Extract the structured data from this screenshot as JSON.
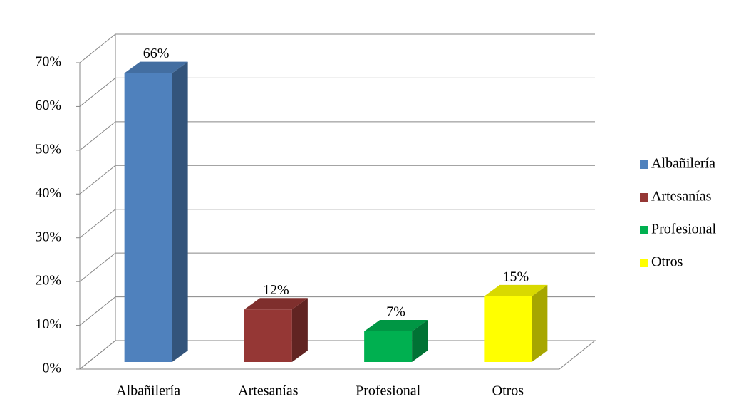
{
  "chart_data": {
    "type": "bar3d",
    "categories": [
      "Albañilería",
      "Artesanías",
      "Profesional",
      "Otros"
    ],
    "values": [
      66,
      12,
      7,
      15
    ],
    "value_labels": [
      "66%",
      "12%",
      "7%",
      "15%"
    ],
    "colors": [
      "#4f81bd",
      "#953735",
      "#00b050",
      "#ffff00"
    ],
    "ylim": [
      0,
      70
    ],
    "yticks": [
      {
        "value": 0,
        "label": "0%"
      },
      {
        "value": 10,
        "label": "10%"
      },
      {
        "value": 20,
        "label": "20%"
      },
      {
        "value": 30,
        "label": "30%"
      },
      {
        "value": 40,
        "label": "40%"
      },
      {
        "value": 50,
        "label": "50%"
      },
      {
        "value": 60,
        "label": "60%"
      },
      {
        "value": 70,
        "label": "70%"
      }
    ],
    "grid": true,
    "legend": "right"
  }
}
